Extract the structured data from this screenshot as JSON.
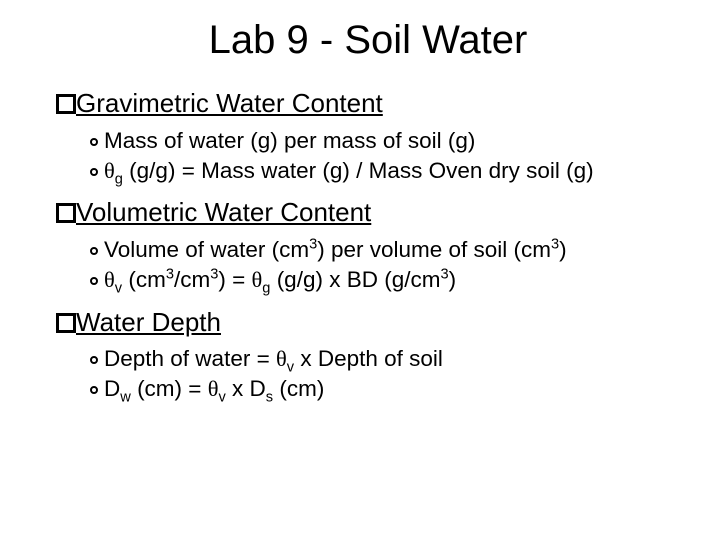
{
  "title": "Lab 9 - Soil Water",
  "sections": {
    "s1": {
      "heading": "Gravimetric Water Content",
      "b1": "Mass of water (g) per mass of soil (g)",
      "b2_pre": "",
      "b2_sub": "g",
      "b2_post": " (g/g) = Mass water (g) / Mass Oven dry soil (g)"
    },
    "s2": {
      "heading": "Volumetric Water Content",
      "b1_a": "Volume of water (cm",
      "b1_b": ") per volume of soil (cm",
      "b1_c": ")",
      "b2_a": "",
      "b2_sub1": "v",
      "b2_b": " (cm",
      "b2_c": "/cm",
      "b2_d": ") = ",
      "b2_sub2": "g",
      "b2_e": " (g/g) x BD (g/cm",
      "b2_f": ")"
    },
    "s3": {
      "heading": "Water Depth",
      "b1_a": "Depth of water = ",
      "b1_sub": "v",
      "b1_b": " x Depth of soil",
      "b2_a": "D",
      "b2_sub1": "w",
      "b2_b": " (cm) = ",
      "b2_sub2": "v",
      "b2_c": " x D",
      "b2_sub3": "s",
      "b2_d": " (cm)"
    }
  },
  "glyphs": {
    "theta": "θ",
    "sup3": "3"
  }
}
